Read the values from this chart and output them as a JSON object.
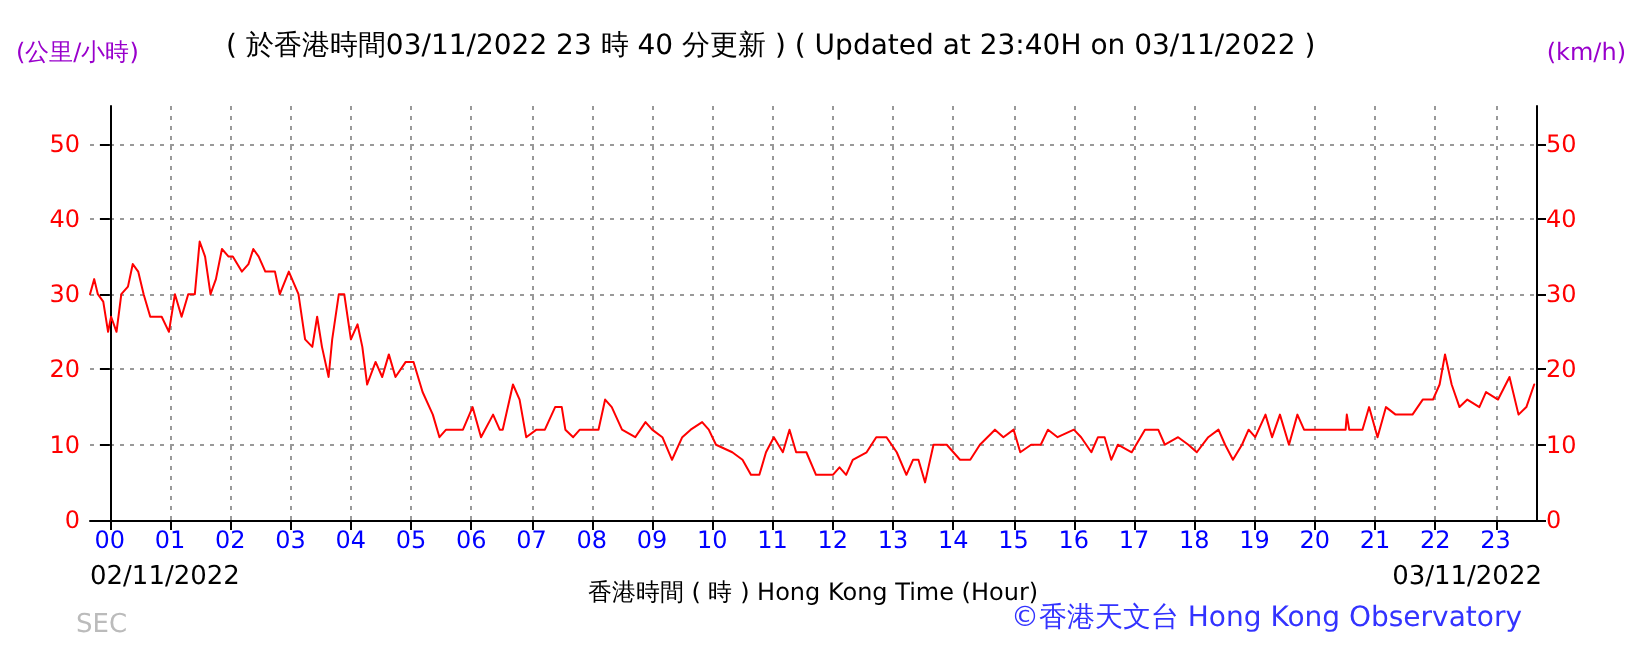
{
  "chart_data": {
    "type": "line",
    "title": "( 於香港時間03/11/2022 23 時 40 分更新 ) ( Updated at 23:40H on 03/11/2022 )",
    "xlabel": "香港時間 ( 時 ) Hong Kong Time (Hour)",
    "ylabel": "(公里/小時)",
    "y2label": "(km/h)",
    "annotations": [
      "02/11/2022",
      "03/11/2022",
      "©香港天文台 Hong Kong Observatory",
      "SEC"
    ],
    "series": [
      {
        "color": "#ff0000",
        "x": [
          -0.33,
          -0.26,
          -0.2,
          -0.11,
          -0.03,
          0.02,
          0.11,
          0.19,
          0.3,
          0.38,
          0.47,
          0.56,
          0.67,
          0.74,
          0.86,
          0.98,
          1.08,
          1.19,
          1.3,
          1.41,
          1.49,
          1.58,
          1.67,
          1.76,
          1.86,
          1.97,
          2.04,
          2.19,
          2.3,
          2.38,
          2.47,
          2.58,
          2.74,
          2.82,
          2.97,
          3.13,
          3.24,
          3.36,
          3.44,
          3.52,
          3.63,
          3.69,
          3.8,
          3.89,
          4,
          4.11,
          4.19,
          4.27,
          4.41,
          4.52,
          4.63,
          4.74,
          4.91,
          5.04,
          5.19,
          5.36,
          5.47,
          5.58,
          5.86,
          6.02,
          6.16,
          6.36,
          6.47,
          6.52,
          6.69,
          6.8,
          6.91,
          7.08,
          7.22,
          7.39,
          7.5,
          7.56,
          7.69,
          7.8,
          8.11,
          8.22,
          8.33,
          8.5,
          8.72,
          8.89,
          9,
          9.17,
          9.33,
          9.5,
          9.64,
          9.83,
          9.94,
          10.06,
          10.33,
          10.5,
          10.64,
          10.78,
          10.89,
          11.02,
          11.17,
          11.28,
          11.39,
          11.56,
          11.72,
          12,
          12.11,
          12.22,
          12.33,
          12.56,
          12.72,
          12.89,
          13.06,
          13.22,
          13.33,
          13.42,
          13.53,
          13.67,
          13.89,
          14.11,
          14.28,
          14.44,
          14.69,
          14.83,
          15,
          15.11,
          15.29,
          15.45,
          15.57,
          15.73,
          16,
          16.12,
          16.29,
          16.4,
          16.51,
          16.62,
          16.73,
          16.96,
          17.18,
          17.4,
          17.51,
          17.73,
          17.9,
          18.04,
          18.23,
          18.4,
          18.51,
          18.64,
          18.79,
          18.9,
          19.01,
          19.18,
          19.29,
          19.42,
          19.57,
          19.71,
          19.82,
          19.96,
          20.51,
          20.53,
          20.57,
          20.79,
          20.9,
          21.04,
          21.18,
          21.34,
          21.62,
          21.79,
          21.96,
          22.07,
          22.16,
          22.27,
          22.4,
          22.53,
          22.73,
          22.84,
          23.04,
          23.23,
          23.38,
          23.51,
          23.64
        ],
        "values": [
          30,
          32,
          30,
          29,
          25,
          27,
          25,
          30,
          31,
          34,
          33,
          30,
          27,
          27,
          27,
          25,
          30,
          27,
          30,
          30,
          37,
          35,
          30,
          32,
          36,
          35,
          35,
          33,
          34,
          36,
          35,
          33,
          33,
          30,
          33,
          30,
          24,
          23,
          27,
          23,
          19,
          24,
          30,
          30,
          24,
          26,
          23,
          18,
          21,
          19,
          22,
          19,
          21,
          21,
          17,
          14,
          11,
          12,
          12,
          15,
          11,
          14,
          12,
          12,
          18,
          16,
          11,
          12,
          12,
          15,
          15,
          12,
          11,
          12,
          12,
          16,
          15,
          12,
          11,
          13,
          12,
          11,
          8,
          11,
          12,
          13,
          12,
          10,
          9,
          8,
          6,
          6,
          9,
          11,
          9,
          12,
          9,
          9,
          6,
          6,
          7,
          6,
          8,
          9,
          11,
          11,
          9,
          6,
          8,
          8,
          5,
          10,
          10,
          8,
          8,
          10,
          12,
          11,
          12,
          9,
          10,
          10,
          12,
          11,
          12,
          11,
          9,
          11,
          11,
          8,
          10,
          9,
          12,
          12,
          10,
          11,
          10,
          9,
          11,
          12,
          10,
          8,
          10,
          12,
          11,
          14,
          11,
          14,
          10,
          14,
          12,
          12,
          12,
          14,
          12,
          12,
          15,
          11,
          15,
          14,
          14,
          16,
          16,
          18,
          22,
          18,
          15,
          16,
          15,
          17,
          16,
          19,
          14,
          15,
          18
        ]
      }
    ],
    "xlim": [
      -0.33,
      23.67
    ],
    "xticks": [
      {
        "value": 0,
        "label": "00"
      },
      {
        "value": 1,
        "label": "01"
      },
      {
        "value": 2,
        "label": "02"
      },
      {
        "value": 3,
        "label": "03"
      },
      {
        "value": 4,
        "label": "04"
      },
      {
        "value": 5,
        "label": "05"
      },
      {
        "value": 6,
        "label": "06"
      },
      {
        "value": 7,
        "label": "07"
      },
      {
        "value": 8,
        "label": "08"
      },
      {
        "value": 9,
        "label": "09"
      },
      10,
      11,
      12,
      13,
      14,
      15,
      16,
      17,
      18,
      19,
      20,
      21,
      22,
      23
    ],
    "ylim": [
      0,
      55
    ],
    "yticks": [
      0,
      10,
      20,
      30,
      40,
      50
    ],
    "y2lim": [
      0,
      55
    ],
    "y2ticks": [
      0,
      10,
      20,
      30,
      40,
      50
    ],
    "grid": true,
    "marker": "none",
    "line_style": "solid"
  }
}
